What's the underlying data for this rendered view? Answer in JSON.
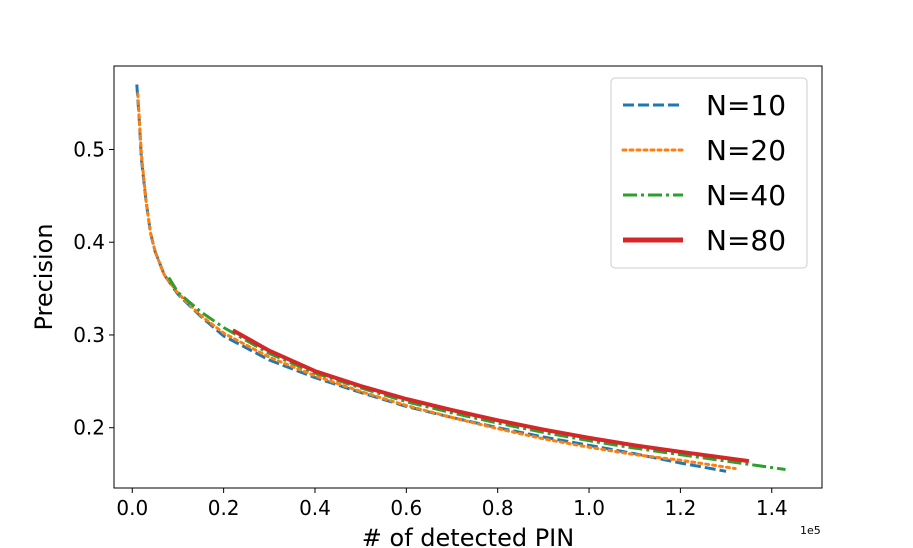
{
  "chart_data": {
    "type": "line",
    "title": "",
    "xlabel": "# of detected PIN",
    "ylabel": "Precision",
    "x_offset_label": "1e5",
    "xlim": [
      -0.04,
      1.51
    ],
    "ylim": [
      0.135,
      0.59
    ],
    "x_ticks": [
      0.0,
      0.2,
      0.4,
      0.6,
      0.8,
      1.0,
      1.2,
      1.4
    ],
    "x_tick_labels": [
      "0.0",
      "0.2",
      "0.4",
      "0.6",
      "0.8",
      "1.0",
      "1.2",
      "1.4"
    ],
    "y_ticks": [
      0.2,
      0.3,
      0.4,
      0.5
    ],
    "y_tick_labels": [
      "0.2",
      "0.3",
      "0.4",
      "0.5"
    ],
    "grid": false,
    "legend_position": "top-right",
    "series": [
      {
        "name": "N=10",
        "color": "#1f77b4",
        "style": "dashed",
        "x": [
          0.01,
          0.015,
          0.02,
          0.03,
          0.04,
          0.05,
          0.07,
          0.1,
          0.15,
          0.2,
          0.3,
          0.4,
          0.5,
          0.6,
          0.7,
          0.8,
          0.9,
          1.0,
          1.1,
          1.2,
          1.3
        ],
        "y": [
          0.57,
          0.535,
          0.49,
          0.445,
          0.41,
          0.39,
          0.365,
          0.344,
          0.32,
          0.299,
          0.273,
          0.254,
          0.238,
          0.223,
          0.211,
          0.2,
          0.19,
          0.181,
          0.172,
          0.162,
          0.153
        ]
      },
      {
        "name": "N=20",
        "color": "#ff7f0e",
        "style": "dotted",
        "x": [
          0.012,
          0.02,
          0.03,
          0.04,
          0.05,
          0.07,
          0.1,
          0.15,
          0.2,
          0.3,
          0.4,
          0.5,
          0.6,
          0.7,
          0.8,
          0.9,
          1.0,
          1.1,
          1.2,
          1.32
        ],
        "y": [
          0.56,
          0.495,
          0.445,
          0.41,
          0.39,
          0.365,
          0.345,
          0.321,
          0.302,
          0.276,
          0.256,
          0.239,
          0.224,
          0.211,
          0.199,
          0.188,
          0.179,
          0.171,
          0.165,
          0.156
        ]
      },
      {
        "name": "N=40",
        "color": "#2ca02c",
        "style": "dashdot",
        "x": [
          0.08,
          0.1,
          0.15,
          0.2,
          0.3,
          0.4,
          0.5,
          0.6,
          0.7,
          0.8,
          0.9,
          1.0,
          1.1,
          1.2,
          1.3,
          1.43
        ],
        "y": [
          0.362,
          0.346,
          0.325,
          0.308,
          0.28,
          0.259,
          0.243,
          0.228,
          0.216,
          0.205,
          0.195,
          0.186,
          0.178,
          0.171,
          0.164,
          0.155
        ]
      },
      {
        "name": "N=80",
        "color": "#d62728",
        "style": "solid",
        "x": [
          0.22,
          0.3,
          0.4,
          0.5,
          0.6,
          0.7,
          0.8,
          0.9,
          1.0,
          1.1,
          1.2,
          1.35
        ],
        "y": [
          0.305,
          0.283,
          0.261,
          0.245,
          0.231,
          0.219,
          0.208,
          0.198,
          0.189,
          0.181,
          0.174,
          0.164
        ]
      }
    ]
  }
}
